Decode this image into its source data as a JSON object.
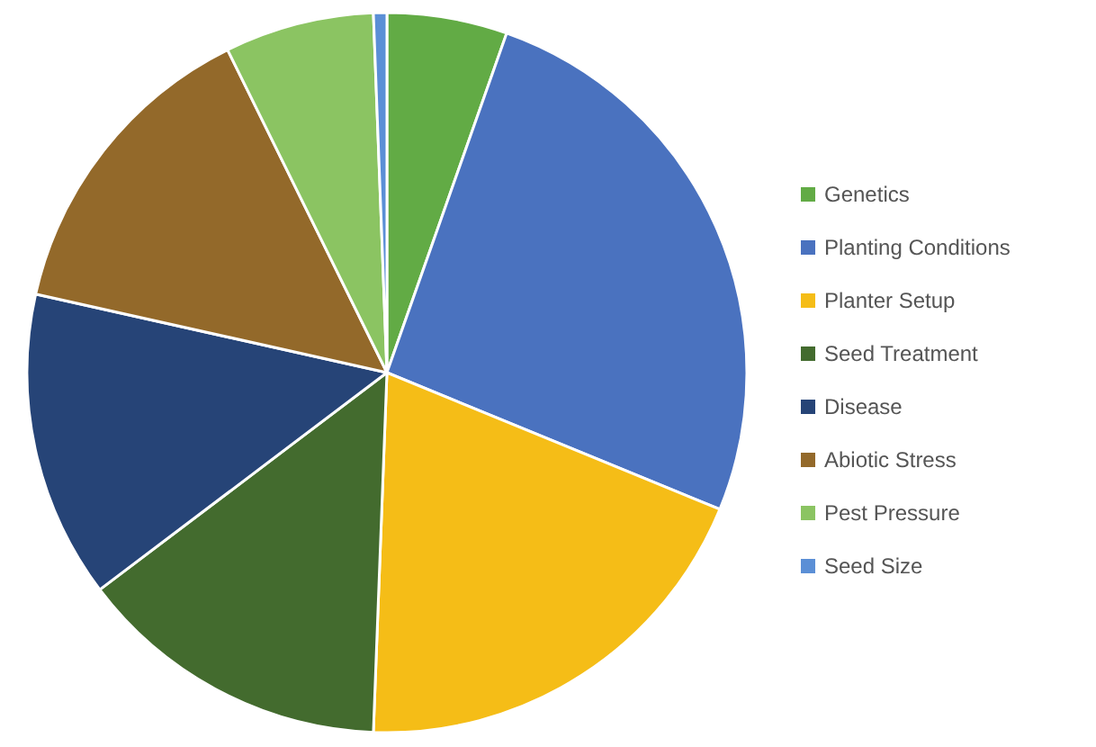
{
  "chart_data": {
    "type": "pie",
    "categories": [
      "Genetics",
      "Planting Conditions",
      "Planter Setup",
      "Seed Treatment",
      "Disease",
      "Abiotic Stress",
      "Pest Pressure",
      "Seed Size"
    ],
    "values": [
      5.4,
      25.8,
      19.4,
      14.1,
      13.8,
      14.2,
      6.7,
      0.6
    ],
    "colors": [
      "#62ab45",
      "#4a72bf",
      "#f5bd17",
      "#436b2e",
      "#264477",
      "#93692a",
      "#8bc462",
      "#5b8fd6"
    ],
    "legend": "right"
  }
}
